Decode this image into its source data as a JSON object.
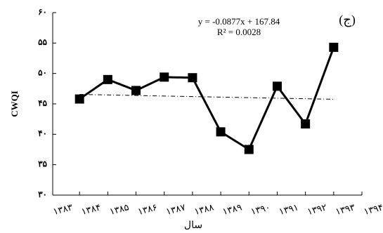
{
  "chart_data": {
    "type": "line",
    "x": [
      1383,
      1384,
      1385,
      1386,
      1387,
      1388,
      1389,
      1390,
      1391,
      1392
    ],
    "values": [
      45.8,
      49.0,
      47.2,
      49.4,
      49.3,
      40.4,
      37.5,
      47.9,
      41.7,
      54.3
    ],
    "color": "#000000",
    "xlabel": "سال",
    "ylabel": "CWQI",
    "annotation": "(ج)",
    "trendline": {
      "slope": -0.0877,
      "intercept": 167.84,
      "equation": "y = -0.0877x + 167.84",
      "r2": "R² = 0.0028"
    },
    "xlim": [
      1382.05,
      1393
    ],
    "xticks": [
      {
        "value": 1383,
        "label": "۱۳۸۳"
      },
      {
        "value": 1384,
        "label": "۱۳۸۴"
      },
      {
        "value": 1385,
        "label": "۱۳۸۵"
      },
      {
        "value": 1386,
        "label": "۱۳۸۶"
      },
      {
        "value": 1387,
        "label": "۱۳۸۷"
      },
      {
        "value": 1388,
        "label": "۱۳۸۸"
      },
      {
        "value": 1389,
        "label": "۱۳۸۹"
      },
      {
        "value": 1390,
        "label": "۱۳۹۰"
      },
      {
        "value": 1391,
        "label": "۱۳۹۱"
      },
      {
        "value": 1392,
        "label": "۱۳۹۲"
      },
      {
        "value": 1393,
        "label": "۱۳۹۳"
      },
      {
        "value": 1394,
        "label": "۱۳۹۴"
      }
    ],
    "ylim": [
      30,
      60
    ],
    "yticks": [
      {
        "value": 30,
        "label": "۳۰"
      },
      {
        "value": 35,
        "label": "۳۵"
      },
      {
        "value": 40,
        "label": "۴۰"
      },
      {
        "value": 45,
        "label": "۴۵"
      },
      {
        "value": 50,
        "label": "۵۰"
      },
      {
        "value": 55,
        "label": "۵۵"
      },
      {
        "value": 60,
        "label": "۶۰"
      }
    ]
  }
}
